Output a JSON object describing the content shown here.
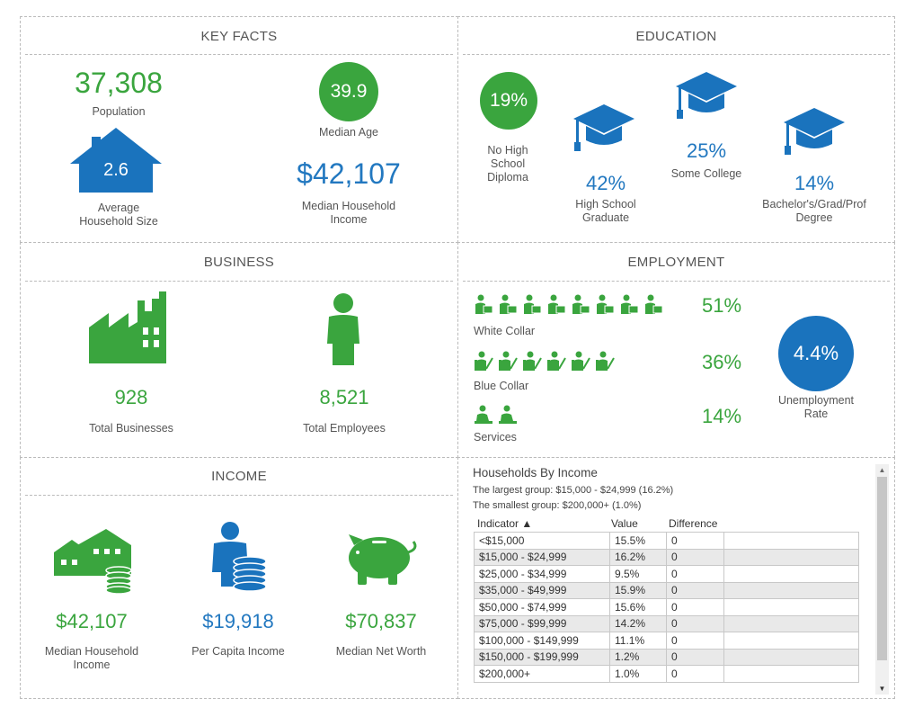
{
  "key_facts": {
    "title": "KEY FACTS",
    "population": {
      "value": "37,308",
      "label": "Population"
    },
    "median_age": {
      "value": "39.9",
      "label": "Median Age"
    },
    "avg_household_size": {
      "value": "2.6",
      "label_line1": "Average",
      "label_line2": "Household Size"
    },
    "median_household_income": {
      "value": "$42,107",
      "label_line1": "Median Household",
      "label_line2": "Income"
    }
  },
  "education": {
    "title": "EDUCATION",
    "no_high_school": {
      "value": "19%",
      "label_line1": "No High",
      "label_line2": "School",
      "label_line3": "Diploma"
    },
    "high_school": {
      "value": "42%",
      "label_line1": "High School",
      "label_line2": "Graduate"
    },
    "some_college": {
      "value": "25%",
      "label": "Some College"
    },
    "bachelors": {
      "value": "14%",
      "label_line1": "Bachelor's/Grad/Prof",
      "label_line2": "Degree"
    }
  },
  "business": {
    "title": "BUSINESS",
    "total_businesses": {
      "value": "928",
      "label": "Total Businesses"
    },
    "total_employees": {
      "value": "8,521",
      "label": "Total Employees"
    }
  },
  "employment": {
    "title": "EMPLOYMENT",
    "white_collar": {
      "value": "51%",
      "label": "White Collar",
      "icon_count": 8
    },
    "blue_collar": {
      "value": "36%",
      "label": "Blue Collar",
      "icon_count": 6
    },
    "services": {
      "value": "14%",
      "label": "Services",
      "icon_count": 2
    },
    "unemployment": {
      "value": "4.4%",
      "label_line1": "Unemployment",
      "label_line2": "Rate"
    }
  },
  "income": {
    "title": "INCOME",
    "median_household_income": {
      "value": "$42,107",
      "label_line1": "Median Household",
      "label_line2": "Income"
    },
    "per_capita_income": {
      "value": "$19,918",
      "label": "Per Capita Income"
    },
    "median_net_worth": {
      "value": "$70,837",
      "label": "Median Net Worth"
    }
  },
  "households_by_income": {
    "title": "Households By Income",
    "largest": "The largest group: $15,000 - $24,999 (16.2%)",
    "smallest": "The smallest group: $200,000+ (1.0%)",
    "headers": {
      "indicator": "Indicator ▲",
      "value": "Value",
      "difference": "Difference"
    },
    "rows": [
      {
        "indicator": "<$15,000",
        "value": "15.5%",
        "difference": "0"
      },
      {
        "indicator": "$15,000 - $24,999",
        "value": "16.2%",
        "difference": "0"
      },
      {
        "indicator": "$25,000 - $34,999",
        "value": "9.5%",
        "difference": "0"
      },
      {
        "indicator": "$35,000 - $49,999",
        "value": "15.9%",
        "difference": "0"
      },
      {
        "indicator": "$50,000 - $74,999",
        "value": "15.6%",
        "difference": "0"
      },
      {
        "indicator": "$75,000 - $99,999",
        "value": "14.2%",
        "difference": "0"
      },
      {
        "indicator": "$100,000 - $149,999",
        "value": "11.1%",
        "difference": "0"
      },
      {
        "indicator": "$150,000 - $199,999",
        "value": "1.2%",
        "difference": "0"
      },
      {
        "indicator": "$200,000+",
        "value": "1.0%",
        "difference": "0"
      }
    ]
  },
  "colors": {
    "green": "#3aa53e",
    "blue": "#2278c0"
  },
  "icons": [
    "house-icon",
    "graduation-cap-icon",
    "factory-icon",
    "person-icon",
    "worker-icon",
    "houses-coins-icon",
    "person-coins-icon",
    "piggy-bank-icon"
  ]
}
